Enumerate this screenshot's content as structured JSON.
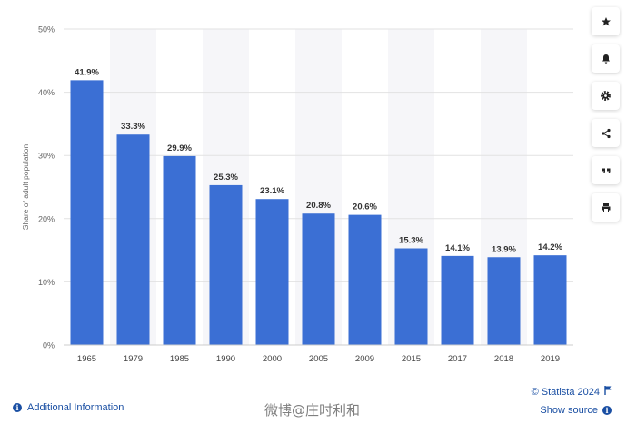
{
  "chart_data": {
    "type": "bar",
    "categories": [
      "1965",
      "1979",
      "1985",
      "1990",
      "2000",
      "2005",
      "2009",
      "2015",
      "2017",
      "2018",
      "2019"
    ],
    "values": [
      41.9,
      33.3,
      29.9,
      25.3,
      23.1,
      20.8,
      20.6,
      15.3,
      14.1,
      13.9,
      14.2
    ],
    "value_labels": [
      "41.9%",
      "33.3%",
      "29.9%",
      "25.3%",
      "23.1%",
      "20.8%",
      "20.6%",
      "15.3%",
      "14.1%",
      "13.9%",
      "14.2%"
    ],
    "ylabel": "Share of adult population",
    "ylim": [
      0,
      50
    ],
    "yticks": [
      "0%",
      "10%",
      "20%",
      "30%",
      "40%",
      "50%"
    ],
    "grid": true,
    "bar_color": "#3b6fd4"
  },
  "toolbar": {
    "icons": [
      "star-icon",
      "bell-icon",
      "gear-icon",
      "share-icon",
      "quote-icon",
      "print-icon"
    ]
  },
  "footer": {
    "additional_info_label": "Additional Information",
    "copyright": "© Statista 2024",
    "show_source_label": "Show source"
  },
  "watermark": "微博@庄时利和",
  "colors": {
    "link": "#1a4fa3",
    "bar": "#3b6fd4"
  }
}
